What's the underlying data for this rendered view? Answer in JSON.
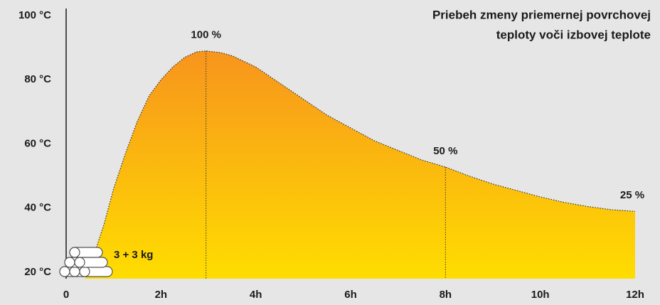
{
  "chart_data": {
    "type": "area",
    "title": [
      "Priebeh zmeny priemernej povrchovej",
      "teploty voči izbovej teplote"
    ],
    "x": [
      0.4,
      0.6,
      0.8,
      1,
      1.25,
      1.5,
      1.75,
      2,
      2.25,
      2.5,
      2.75,
      2.95,
      3.25,
      3.5,
      4,
      4.5,
      5,
      5.5,
      6,
      6.5,
      7,
      7.5,
      8,
      8.5,
      9,
      9.5,
      10,
      10.5,
      11,
      11.5,
      12
    ],
    "values": [
      20,
      26,
      35,
      46,
      57,
      67,
      75,
      80,
      84,
      87,
      88.7,
      89,
      88.5,
      87.5,
      84,
      79,
      74,
      69,
      65,
      61,
      58,
      55,
      52.8,
      50,
      47.5,
      45.5,
      43.5,
      41.8,
      40.5,
      39.5,
      39
    ],
    "colors": [
      "#f7941d",
      "#ffdd00"
    ],
    "xlim": [
      0,
      12
    ],
    "xticks": [
      0,
      {
        "value": 2,
        "label": "2h"
      },
      {
        "value": 4,
        "label": "4h"
      },
      {
        "value": 6,
        "label": "6h"
      },
      {
        "value": 8,
        "label": "8h"
      },
      {
        "value": 10,
        "label": "10h"
      },
      {
        "value": 12,
        "label": "12h"
      }
    ],
    "ylim": [
      18,
      102
    ],
    "yticks": [
      {
        "value": 20,
        "label": "20 °C"
      },
      {
        "value": 40,
        "label": "40 °C"
      },
      {
        "value": 60,
        "label": "60 °C"
      },
      {
        "value": 80,
        "label": "80 °C"
      },
      {
        "value": 100,
        "label": "100 °C"
      }
    ],
    "annotations": [
      {
        "label": "100 %",
        "x": 2.95,
        "y": 89
      },
      {
        "label": "50 %",
        "x": 8,
        "y": 52.8
      },
      {
        "label": "25 %",
        "x": 12,
        "y": 39
      }
    ],
    "load_label": "3 + 3 kg"
  }
}
